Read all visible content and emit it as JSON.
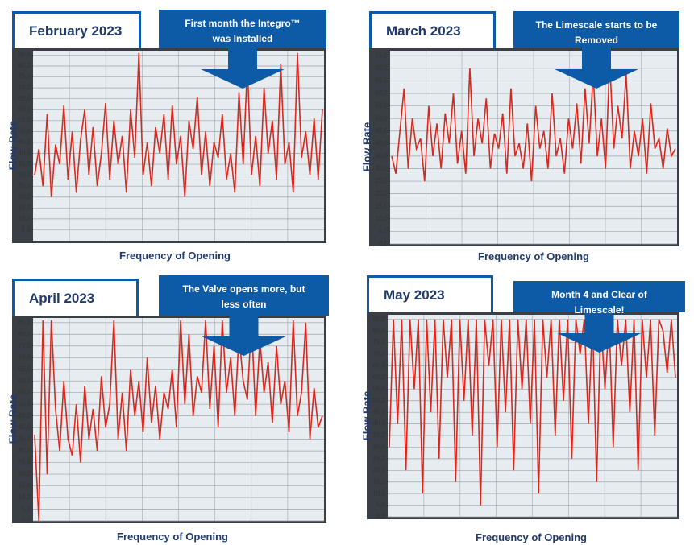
{
  "chart_data": [
    {
      "type": "line",
      "title": "February 2023",
      "annotation": "First month the Integro™ was Installed",
      "ylabel": "Flow Rate",
      "xlabel": "Frequency of Opening",
      "color": "#d8291f",
      "grid": true,
      "ylim": [
        0,
        87
      ],
      "yticks": [
        {
          "value": 5,
          "label": "5,0"
        },
        {
          "value": 10,
          "label": "10,0"
        },
        {
          "value": 15,
          "label": "15,0"
        },
        {
          "value": 20,
          "label": "20,0"
        },
        {
          "value": 25,
          "label": "25,0"
        },
        {
          "value": 30,
          "label": "30,0"
        },
        {
          "value": 35,
          "label": "35,0"
        },
        {
          "value": 40,
          "label": "40,0"
        },
        {
          "value": 45,
          "label": "45,0"
        },
        {
          "value": 50,
          "label": "50,0"
        },
        {
          "value": 55,
          "label": "55,0"
        },
        {
          "value": 60,
          "label": "60,0"
        },
        {
          "value": 65,
          "label": "65,0"
        },
        {
          "value": 70,
          "label": "70,0"
        },
        {
          "value": 75,
          "label": "75,0"
        },
        {
          "value": 80,
          "label": "80,0"
        },
        {
          "value": 85,
          "label": "85,0"
        }
      ],
      "values": [
        30,
        42,
        25,
        58,
        20,
        44,
        35,
        62,
        28,
        50,
        22,
        46,
        60,
        30,
        52,
        25,
        40,
        63,
        28,
        55,
        35,
        48,
        22,
        60,
        38,
        86,
        30,
        45,
        25,
        52,
        40,
        58,
        28,
        62,
        35,
        48,
        20,
        55,
        42,
        66,
        30,
        50,
        25,
        45,
        38,
        58,
        28,
        40,
        22,
        68,
        35,
        80,
        30,
        48,
        25,
        70,
        40,
        55,
        28,
        81,
        35,
        45,
        22,
        86,
        38,
        50,
        30,
        56,
        28,
        60
      ]
    },
    {
      "type": "line",
      "title": "March 2023",
      "annotation": "The Limescale starts to be Removed",
      "ylabel": "Flow Rate",
      "xlabel": "Frequency of Opening",
      "color": "#d8291f",
      "grid": true,
      "ylim": [
        0,
        77
      ],
      "yticks": [
        {
          "value": 0,
          "label": "0,0"
        },
        {
          "value": 5,
          "label": "5,0"
        },
        {
          "value": 10,
          "label": "10,0"
        },
        {
          "value": 15,
          "label": "15,0"
        },
        {
          "value": 20,
          "label": "20,0"
        },
        {
          "value": 25,
          "label": "25,0"
        },
        {
          "value": 30,
          "label": "30,0"
        },
        {
          "value": 35,
          "label": "35,0"
        },
        {
          "value": 40,
          "label": "40,0"
        },
        {
          "value": 45,
          "label": "45,0"
        },
        {
          "value": 50,
          "label": "50,0"
        },
        {
          "value": 55,
          "label": "55,0"
        },
        {
          "value": 60,
          "label": "60,0"
        },
        {
          "value": 65,
          "label": "65,0"
        },
        {
          "value": 70,
          "label": "70,0"
        },
        {
          "value": 75,
          "label": "75,0"
        }
      ],
      "values": [
        35,
        28,
        45,
        62,
        30,
        50,
        38,
        42,
        25,
        55,
        35,
        48,
        30,
        52,
        40,
        60,
        32,
        45,
        28,
        70,
        35,
        50,
        40,
        58,
        30,
        44,
        38,
        52,
        28,
        62,
        35,
        40,
        30,
        48,
        25,
        55,
        38,
        45,
        30,
        60,
        35,
        42,
        28,
        50,
        38,
        56,
        32,
        62,
        40,
        68,
        35,
        50,
        30,
        73,
        38,
        55,
        42,
        68,
        30,
        45,
        35,
        50,
        28,
        56,
        38,
        42,
        30,
        46,
        35,
        38
      ]
    },
    {
      "type": "line",
      "title": "April 2023",
      "annotation": "The Valve opens more, but less often",
      "ylabel": "Flow Rate",
      "xlabel": "Frequency of Opening",
      "color": "#d8291f",
      "grid": true,
      "ylim": [
        0,
        87
      ],
      "yticks": [
        {
          "value": 0,
          "label": "0,0"
        },
        {
          "value": 5,
          "label": "5,0"
        },
        {
          "value": 10,
          "label": "10,0"
        },
        {
          "value": 15,
          "label": "15,0"
        },
        {
          "value": 20,
          "label": "20,0"
        },
        {
          "value": 25,
          "label": "25,0"
        },
        {
          "value": 30,
          "label": "30,0"
        },
        {
          "value": 35,
          "label": "35,0"
        },
        {
          "value": 40,
          "label": "40,0"
        },
        {
          "value": 45,
          "label": "45,0"
        },
        {
          "value": 50,
          "label": "50,0"
        },
        {
          "value": 55,
          "label": "55,0"
        },
        {
          "value": 60,
          "label": "60,0"
        },
        {
          "value": 65,
          "label": "65,0"
        },
        {
          "value": 70,
          "label": "70,0"
        },
        {
          "value": 75,
          "label": "75,0"
        },
        {
          "value": 80,
          "label": "80,0"
        },
        {
          "value": 85,
          "label": "85,0"
        }
      ],
      "values": [
        37,
        0,
        86,
        20,
        86,
        48,
        30,
        60,
        35,
        28,
        50,
        25,
        58,
        35,
        48,
        30,
        62,
        40,
        50,
        86,
        35,
        55,
        30,
        65,
        45,
        60,
        38,
        70,
        42,
        58,
        35,
        55,
        48,
        65,
        40,
        86,
        50,
        80,
        45,
        62,
        55,
        86,
        48,
        75,
        40,
        86,
        55,
        70,
        45,
        80,
        60,
        52,
        86,
        45,
        78,
        55,
        68,
        42,
        75,
        50,
        60,
        38,
        86,
        45,
        55,
        85,
        35,
        57,
        40,
        45
      ]
    },
    {
      "type": "line",
      "title": "May 2023",
      "annotation": "Month 4 and Clear of Limescale!",
      "ylabel": "Flow Rate",
      "xlabel": "Frequency of Opening",
      "color": "#d8291f",
      "grid": true,
      "ylim": [
        0,
        87
      ],
      "yticks": [
        {
          "value": 0,
          "label": "0,0"
        },
        {
          "value": 5,
          "label": "5,0"
        },
        {
          "value": 10,
          "label": "10,0"
        },
        {
          "value": 15,
          "label": "15,0"
        },
        {
          "value": 20,
          "label": "20,0"
        },
        {
          "value": 25,
          "label": "25,0"
        },
        {
          "value": 30,
          "label": "30,0"
        },
        {
          "value": 35,
          "label": "35,0"
        },
        {
          "value": 40,
          "label": "40,0"
        },
        {
          "value": 45,
          "label": "45,0"
        },
        {
          "value": 50,
          "label": "50,0"
        },
        {
          "value": 55,
          "label": "55,0"
        },
        {
          "value": 60,
          "label": "60,0"
        },
        {
          "value": 65,
          "label": "65,0"
        },
        {
          "value": 70,
          "label": "70,0"
        },
        {
          "value": 75,
          "label": "75,0"
        },
        {
          "value": 80,
          "label": "80,0"
        },
        {
          "value": 85,
          "label": "85,0"
        }
      ],
      "values": [
        30,
        85,
        40,
        85,
        20,
        85,
        55,
        85,
        10,
        85,
        45,
        85,
        25,
        85,
        60,
        85,
        15,
        85,
        50,
        85,
        35,
        85,
        5,
        85,
        65,
        85,
        30,
        85,
        45,
        85,
        20,
        85,
        55,
        85,
        40,
        85,
        10,
        85,
        60,
        85,
        35,
        85,
        50,
        85,
        25,
        85,
        70,
        85,
        40,
        85,
        15,
        85,
        55,
        85,
        30,
        85,
        65,
        85,
        45,
        85,
        20,
        85,
        60,
        85,
        35,
        85,
        80,
        62,
        85,
        60
      ]
    }
  ]
}
